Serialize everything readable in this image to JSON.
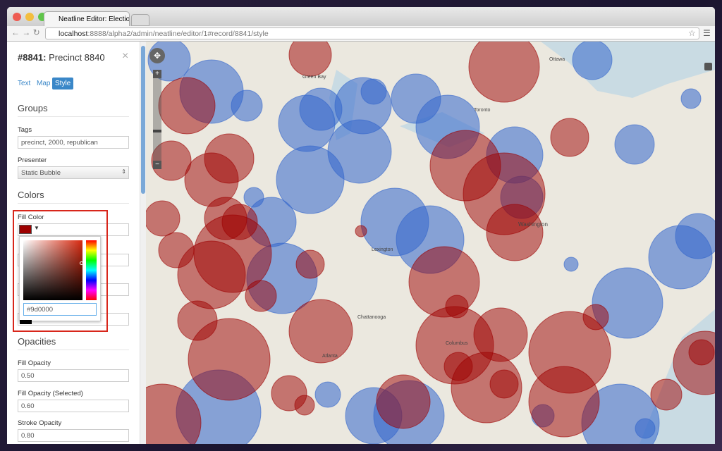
{
  "browser": {
    "tab_title": "Neatline Editor: Election R",
    "url_host": "localhost",
    "url_path": ":8888/alpha2/admin/neatline/editor/1#record/8841/style"
  },
  "panel": {
    "record_id": "#8841:",
    "record_title": "Precinct 8840",
    "close": "×",
    "tabs": [
      "Text",
      "Map",
      "Style"
    ],
    "groups": {
      "heading": "Groups",
      "tags_label": "Tags",
      "tags_value": "precinct, 2000, republican",
      "presenter_label": "Presenter",
      "presenter_value": "Static Bubble"
    },
    "colors": {
      "heading": "Colors",
      "fill_color_label": "Fill Color",
      "hex_value": "#9d0000"
    },
    "opacities": {
      "heading": "Opacities",
      "fields": [
        {
          "label": "Fill Opacity",
          "value": "0.50"
        },
        {
          "label": "Fill Opacity (Selected)",
          "value": "0.60"
        },
        {
          "label": "Stroke Opacity",
          "value": "0.80"
        }
      ]
    }
  },
  "map": {
    "labels": [
      "Ottawa",
      "Green Bay",
      "Toronto",
      "Washington",
      "Lexington",
      "Chattanooga",
      "Columbus",
      "Atlanta"
    ]
  }
}
